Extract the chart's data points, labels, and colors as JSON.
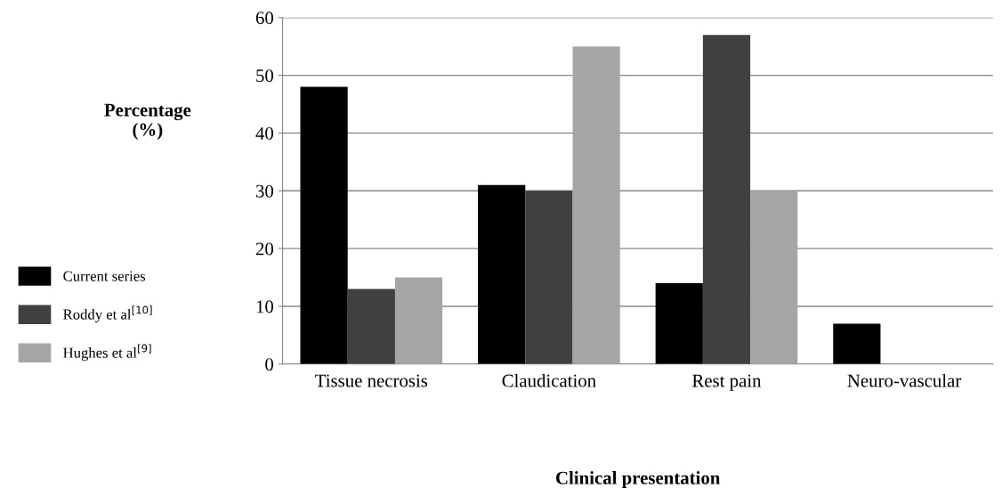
{
  "chart_data": {
    "type": "bar",
    "categories": [
      "Tissue necrosis",
      "Claudication",
      "Rest pain",
      "Neuro-vascular"
    ],
    "series": [
      {
        "name": "Current series",
        "color": "#000000",
        "values": [
          48,
          31,
          14,
          7
        ]
      },
      {
        "name": "Roddy et al$^{[10]}$",
        "color": "#404040",
        "values": [
          13,
          30,
          57,
          0
        ]
      },
      {
        "name": "Hughes et al$^{[9]}$",
        "color": "#a6a6a6",
        "values": [
          15,
          55,
          30,
          0
        ]
      }
    ],
    "xlabel": "Clinical presentation",
    "ylabel": "Percentage\n(%)",
    "ylim": [
      0,
      60
    ],
    "yticks": [
      0,
      10,
      20,
      30,
      40,
      50,
      60
    ],
    "grid": "y",
    "legend": "left"
  }
}
